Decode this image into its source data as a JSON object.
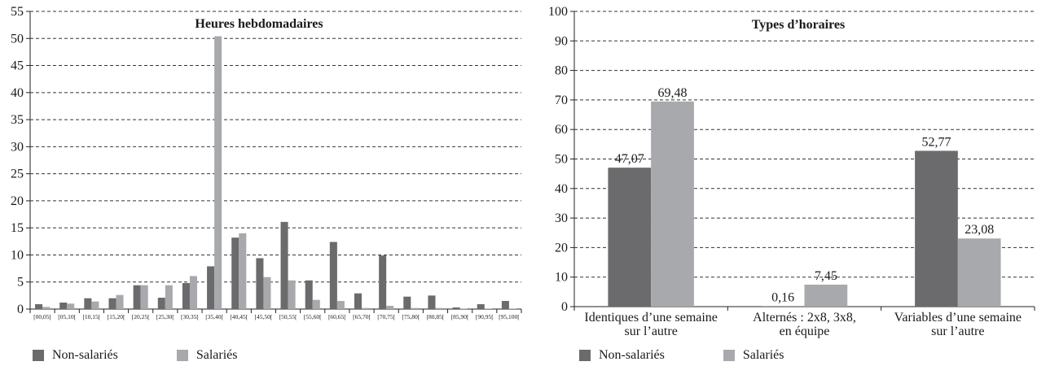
{
  "colors": {
    "non_salaries": "#6b6b6d",
    "salaries": "#a8a9ac",
    "axis": "#222222",
    "grid": "#333333"
  },
  "chart_data": [
    {
      "type": "bar",
      "title": "Heures hebdomadaires",
      "xlabel": "",
      "ylabel": "",
      "ylim": [
        0,
        55
      ],
      "yticks": [
        "0",
        "5",
        "10",
        "15",
        "20",
        "25",
        "30",
        "35",
        "40",
        "45",
        "50",
        "55"
      ],
      "grid": true,
      "legend_position": "bottom-left",
      "categories": [
        "[00,05[",
        "[05,10[",
        "[10,15[",
        "[15,20[",
        "[20,25[",
        "[25,30[",
        "[30,35[",
        "[35,40[",
        "[40,45[",
        "[45,50[",
        "[50,55[",
        "[55,60[",
        "[60,65[",
        "[65,70[",
        "[70,75[",
        "[75,80[",
        "[80,85[",
        "[85,90[",
        "[90,95[",
        "[95,100["
      ],
      "series": [
        {
          "name": "Non-salariés",
          "values": [
            0.9,
            1.2,
            2.0,
            2.0,
            4.4,
            2.1,
            4.8,
            7.9,
            13.2,
            9.4,
            16.1,
            5.3,
            12.4,
            2.9,
            9.9,
            2.3,
            2.5,
            0.3,
            0.9,
            1.5
          ]
        },
        {
          "name": "Salariés",
          "values": [
            0.4,
            1.0,
            1.4,
            2.6,
            4.4,
            4.4,
            6.1,
            50.4,
            14.0,
            5.9,
            5.3,
            1.7,
            1.5,
            0.2,
            0.6,
            0.2,
            0.2,
            0.1,
            0.1,
            0.1
          ]
        }
      ]
    },
    {
      "type": "bar",
      "title": "Types d’horaires",
      "xlabel": "",
      "ylabel": "",
      "ylim": [
        0,
        100
      ],
      "yticks": [
        "0",
        "10",
        "20",
        "30",
        "40",
        "50",
        "60",
        "70",
        "80",
        "90",
        "100"
      ],
      "grid": true,
      "legend_position": "bottom-left",
      "categories": [
        [
          "Identiques d’une semaine",
          "sur l’autre"
        ],
        [
          "Alternés : 2x8, 3x8,",
          "en équipe"
        ],
        [
          "Variables d’une semaine",
          "sur l’autre"
        ]
      ],
      "series": [
        {
          "name": "Non-salariés",
          "values": [
            47.07,
            0.16,
            52.77
          ],
          "labels": [
            "47,07",
            "0,16",
            "52,77"
          ]
        },
        {
          "name": "Salariés",
          "values": [
            69.48,
            7.45,
            23.08
          ],
          "labels": [
            "69,48",
            "7,45",
            "23,08"
          ]
        }
      ]
    }
  ],
  "legends": [
    {
      "items": [
        "Non-salariés",
        "Salariés"
      ]
    },
    {
      "items": [
        "Non-salariés",
        "Salariés"
      ]
    }
  ]
}
